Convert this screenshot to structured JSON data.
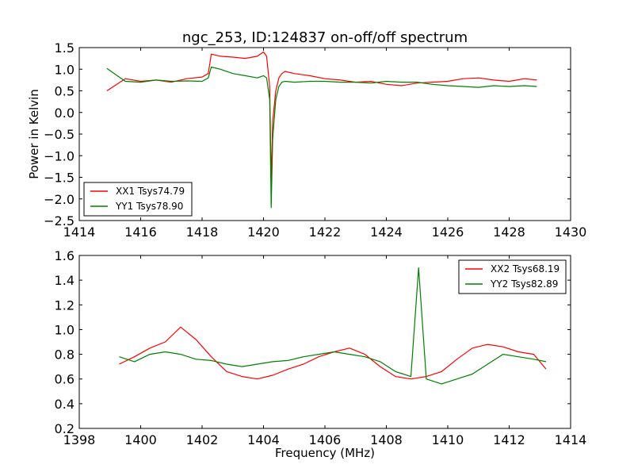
{
  "chart_data": [
    {
      "type": "line",
      "title": "ngc_253, ID:124837 on-off/off spectrum",
      "xlabel": "",
      "ylabel": "Power in Kelvin",
      "xlim": [
        1414,
        1430
      ],
      "ylim": [
        -2.5,
        1.5
      ],
      "xticks": [
        1414,
        1416,
        1418,
        1420,
        1422,
        1424,
        1426,
        1428,
        1430
      ],
      "yticks": [
        -2.5,
        -2.0,
        -1.5,
        -1.0,
        -0.5,
        0.0,
        0.5,
        1.0,
        1.5
      ],
      "xtick_labels": [
        "1414",
        "1416",
        "1418",
        "1420",
        "1422",
        "1424",
        "1426",
        "1428",
        "1430"
      ],
      "ytick_labels": [
        "−2.5",
        "−2.0",
        "−1.5",
        "−1.0",
        "−0.5",
        "0.0",
        "0.5",
        "1.0",
        "1.5"
      ],
      "legend_position": "lower-left",
      "series": [
        {
          "name": "XX1 Tsys74.79",
          "color": "#ff0000",
          "x": [
            1414.9,
            1415.5,
            1416.0,
            1416.5,
            1417.0,
            1417.5,
            1418.0,
            1418.2,
            1418.3,
            1418.6,
            1419.0,
            1419.4,
            1419.8,
            1420.0,
            1420.1,
            1420.2,
            1420.25,
            1420.3,
            1420.4,
            1420.5,
            1420.6,
            1420.7,
            1421.0,
            1421.5,
            1422.0,
            1422.5,
            1423.0,
            1423.5,
            1424.0,
            1424.5,
            1425.0,
            1425.5,
            1426.0,
            1426.5,
            1427.0,
            1427.5,
            1428.0,
            1428.5,
            1428.9
          ],
          "y": [
            0.5,
            0.78,
            0.72,
            0.75,
            0.7,
            0.78,
            0.82,
            0.9,
            1.35,
            1.3,
            1.28,
            1.25,
            1.3,
            1.4,
            1.3,
            0.6,
            -1.6,
            -0.2,
            0.5,
            0.8,
            0.9,
            0.95,
            0.9,
            0.85,
            0.78,
            0.75,
            0.7,
            0.72,
            0.65,
            0.62,
            0.68,
            0.7,
            0.72,
            0.78,
            0.8,
            0.75,
            0.72,
            0.78,
            0.75
          ]
        },
        {
          "name": "YY1 Tsys78.90",
          "color": "#008000",
          "x": [
            1414.9,
            1415.5,
            1416.0,
            1416.5,
            1417.0,
            1417.5,
            1418.0,
            1418.2,
            1418.3,
            1418.6,
            1419.0,
            1419.4,
            1419.8,
            1420.0,
            1420.1,
            1420.2,
            1420.25,
            1420.3,
            1420.4,
            1420.5,
            1420.6,
            1420.7,
            1421.0,
            1421.5,
            1422.0,
            1422.5,
            1423.0,
            1423.5,
            1424.0,
            1424.5,
            1425.0,
            1425.5,
            1426.0,
            1426.5,
            1427.0,
            1427.5,
            1428.0,
            1428.5,
            1428.9
          ],
          "y": [
            1.02,
            0.72,
            0.7,
            0.75,
            0.72,
            0.73,
            0.72,
            0.8,
            1.05,
            1.0,
            0.9,
            0.85,
            0.8,
            0.85,
            0.8,
            0.3,
            -2.2,
            -0.6,
            0.3,
            0.6,
            0.7,
            0.72,
            0.7,
            0.72,
            0.72,
            0.7,
            0.7,
            0.68,
            0.72,
            0.7,
            0.7,
            0.65,
            0.62,
            0.6,
            0.58,
            0.62,
            0.6,
            0.62,
            0.6
          ]
        }
      ]
    },
    {
      "type": "line",
      "title": "",
      "xlabel": "Frequency (MHz)",
      "ylabel": "",
      "xlim": [
        1398,
        1414
      ],
      "ylim": [
        0.2,
        1.6
      ],
      "xticks": [
        1398,
        1400,
        1402,
        1404,
        1406,
        1408,
        1410,
        1412,
        1414
      ],
      "yticks": [
        0.2,
        0.4,
        0.6,
        0.8,
        1.0,
        1.2,
        1.4,
        1.6
      ],
      "xtick_labels": [
        "1398",
        "1400",
        "1402",
        "1404",
        "1406",
        "1408",
        "1410",
        "1412",
        "1414"
      ],
      "ytick_labels": [
        "0.2",
        "0.4",
        "0.6",
        "0.8",
        "1.0",
        "1.2",
        "1.4",
        "1.6"
      ],
      "legend_position": "top-right",
      "series": [
        {
          "name": "XX2 Tsys68.19",
          "color": "#ff0000",
          "x": [
            1399.3,
            1399.8,
            1400.3,
            1400.8,
            1401.3,
            1401.8,
            1402.3,
            1402.8,
            1403.3,
            1403.8,
            1404.3,
            1404.8,
            1405.3,
            1405.8,
            1406.3,
            1406.8,
            1407.3,
            1407.8,
            1408.3,
            1408.8,
            1409.3,
            1409.8,
            1410.3,
            1410.8,
            1411.3,
            1411.8,
            1412.3,
            1412.8,
            1413.2
          ],
          "y": [
            0.72,
            0.78,
            0.85,
            0.9,
            1.02,
            0.92,
            0.78,
            0.66,
            0.62,
            0.6,
            0.63,
            0.68,
            0.72,
            0.78,
            0.82,
            0.85,
            0.8,
            0.7,
            0.62,
            0.6,
            0.62,
            0.66,
            0.76,
            0.85,
            0.88,
            0.86,
            0.82,
            0.8,
            0.68
          ]
        },
        {
          "name": "YY2 Tsys82.89",
          "color": "#008000",
          "x": [
            1399.3,
            1399.8,
            1400.3,
            1400.8,
            1401.3,
            1401.8,
            1402.3,
            1402.8,
            1403.3,
            1403.8,
            1404.3,
            1404.8,
            1405.3,
            1405.8,
            1406.3,
            1406.8,
            1407.3,
            1407.8,
            1408.3,
            1408.8,
            1409.05,
            1409.3,
            1409.8,
            1410.3,
            1410.8,
            1411.3,
            1411.8,
            1412.3,
            1412.8,
            1413.2
          ],
          "y": [
            0.78,
            0.74,
            0.8,
            0.82,
            0.8,
            0.76,
            0.75,
            0.72,
            0.7,
            0.72,
            0.74,
            0.75,
            0.78,
            0.8,
            0.82,
            0.8,
            0.78,
            0.74,
            0.66,
            0.62,
            1.5,
            0.6,
            0.56,
            0.6,
            0.64,
            0.72,
            0.8,
            0.78,
            0.76,
            0.74
          ]
        }
      ]
    }
  ]
}
